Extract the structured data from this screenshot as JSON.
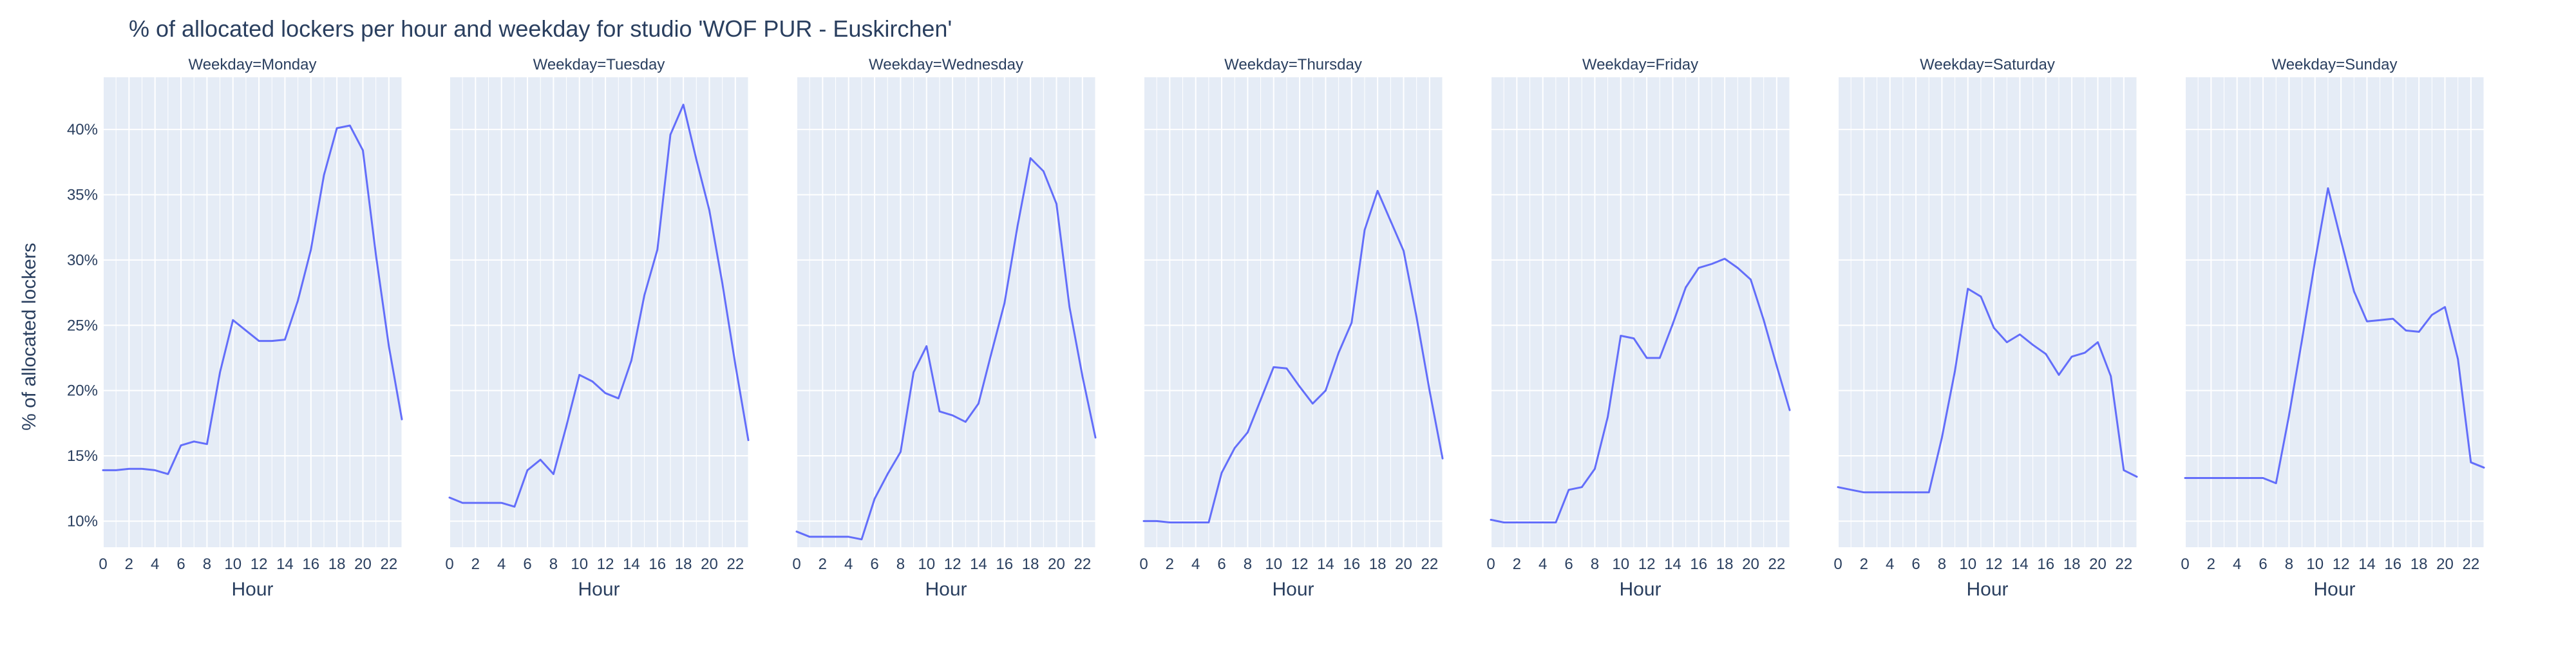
{
  "chart_data": {
    "type": "line",
    "title": "% of allocated lockers per hour and weekday for studio 'WOF PUR - Euskirchen'",
    "ylabel": "% of allocated lockers",
    "xlabel": "Hour",
    "xlim": [
      0,
      23
    ],
    "ylim": [
      8,
      44
    ],
    "x_ticks": [
      0,
      2,
      4,
      6,
      8,
      10,
      12,
      14,
      16,
      18,
      20,
      22
    ],
    "x_tick_labels": [
      "0",
      "2",
      "4",
      "6",
      "8",
      "10",
      "12",
      "14",
      "16",
      "18",
      "20",
      "22"
    ],
    "y_ticks": [
      10,
      15,
      20,
      25,
      30,
      35,
      40
    ],
    "y_tick_labels": [
      "10%",
      "15%",
      "20%",
      "25%",
      "30%",
      "35%",
      "40%"
    ],
    "grid": true,
    "line_color": "#636efa",
    "plot_bg_color": "#e5ecf6",
    "x": [
      0,
      1,
      2,
      3,
      4,
      5,
      6,
      7,
      8,
      9,
      10,
      11,
      12,
      13,
      14,
      15,
      16,
      17,
      18,
      19,
      20,
      21,
      22,
      23
    ],
    "facets": [
      {
        "title": "Weekday=Monday",
        "values": [
          13.9,
          13.9,
          14.0,
          14.0,
          13.9,
          13.6,
          15.8,
          16.1,
          15.9,
          21.4,
          25.4,
          24.6,
          23.8,
          23.8,
          23.9,
          26.9,
          30.8,
          36.5,
          40.1,
          40.3,
          38.4,
          30.4,
          23.4,
          17.8
        ]
      },
      {
        "title": "Weekday=Tuesday",
        "values": [
          11.8,
          11.4,
          11.4,
          11.4,
          11.4,
          11.1,
          13.9,
          14.7,
          13.6,
          17.3,
          21.2,
          20.7,
          19.8,
          19.4,
          22.3,
          27.3,
          30.8,
          39.6,
          41.9,
          37.7,
          33.8,
          28.2,
          22.0,
          16.2
        ]
      },
      {
        "title": "Weekday=Wednesday",
        "values": [
          9.2,
          8.8,
          8.8,
          8.8,
          8.8,
          8.6,
          11.7,
          13.6,
          15.3,
          21.4,
          23.4,
          18.4,
          18.1,
          17.6,
          19.0,
          22.9,
          26.7,
          32.6,
          37.8,
          36.8,
          34.3,
          26.4,
          21.1,
          16.4
        ]
      },
      {
        "title": "Weekday=Thursday",
        "values": [
          10.0,
          10.0,
          9.9,
          9.9,
          9.9,
          9.9,
          13.7,
          15.6,
          16.8,
          19.3,
          21.8,
          21.7,
          20.3,
          19.0,
          20.0,
          22.9,
          25.2,
          32.3,
          35.3,
          33.0,
          30.7,
          25.6,
          20.0,
          14.8
        ]
      },
      {
        "title": "Weekday=Friday",
        "values": [
          10.1,
          9.9,
          9.9,
          9.9,
          9.9,
          9.9,
          12.4,
          12.6,
          14.0,
          18.0,
          24.2,
          24.0,
          22.5,
          22.5,
          25.1,
          27.9,
          29.4,
          29.7,
          30.1,
          29.4,
          28.5,
          25.4,
          21.9,
          18.5
        ]
      },
      {
        "title": "Weekday=Saturday",
        "values": [
          12.6,
          12.4,
          12.2,
          12.2,
          12.2,
          12.2,
          12.2,
          12.2,
          16.4,
          21.5,
          27.8,
          27.2,
          24.8,
          23.7,
          24.3,
          23.5,
          22.8,
          21.2,
          22.6,
          22.9,
          23.7,
          21.1,
          13.9,
          13.4
        ]
      },
      {
        "title": "Weekday=Sunday",
        "values": [
          13.3,
          13.3,
          13.3,
          13.3,
          13.3,
          13.3,
          13.3,
          12.9,
          18.1,
          23.9,
          29.9,
          35.5,
          31.5,
          27.6,
          25.3,
          25.4,
          25.5,
          24.6,
          24.5,
          25.8,
          26.4,
          22.4,
          14.5,
          14.1
        ]
      }
    ]
  }
}
